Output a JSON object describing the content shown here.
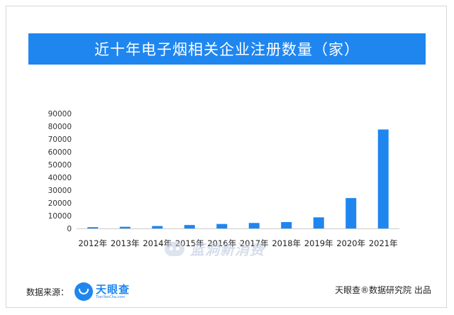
{
  "title": "近十年电子烟相关企业注册数量（家）",
  "footer": {
    "source_label": "数据来源：",
    "logo_name": "天眼查",
    "logo_url": "TianYanCha.com",
    "credit": "天眼查®数据研究院 出品"
  },
  "watermark": "蓝洞新消费",
  "colors": {
    "accent": "#1f86f0",
    "bar": "#1f86f0",
    "axis": "#cccccc"
  },
  "chart_data": {
    "type": "bar",
    "title": "近十年电子烟相关企业注册数量（家）",
    "categories": [
      "2012年",
      "2013年",
      "2014年",
      "2015年",
      "2016年",
      "2017年",
      "2018年",
      "2019年",
      "2020年",
      "2021年"
    ],
    "values": [
      1000,
      1300,
      1900,
      2700,
      3500,
      4300,
      5000,
      8700,
      23800,
      77500
    ],
    "ylim": [
      0,
      90000
    ],
    "yticks": [
      0,
      10000,
      20000,
      30000,
      40000,
      50000,
      60000,
      70000,
      80000,
      90000
    ],
    "grid": false,
    "xlabel": "",
    "ylabel": ""
  }
}
